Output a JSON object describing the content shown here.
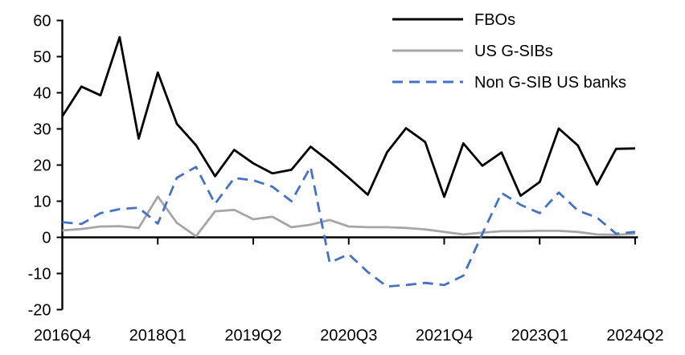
{
  "chart_data": {
    "type": "line",
    "title": "",
    "xlabel": "",
    "ylabel": "",
    "grid": false,
    "legend_position": "top-right",
    "ylim": [
      -20,
      60
    ],
    "y_ticks": [
      60,
      50,
      40,
      30,
      20,
      10,
      0,
      -10,
      -20
    ],
    "x_tick_labels": [
      "2016Q4",
      "2018Q1",
      "2019Q2",
      "2020Q3",
      "2021Q4",
      "2023Q1",
      "2024Q2"
    ],
    "x_tick_indices": [
      0,
      5,
      10,
      15,
      20,
      25,
      30
    ],
    "categories": [
      "2016Q4",
      "2017Q1",
      "2017Q2",
      "2017Q3",
      "2017Q4",
      "2018Q1",
      "2018Q2",
      "2018Q3",
      "2018Q4",
      "2019Q1",
      "2019Q2",
      "2019Q3",
      "2019Q4",
      "2020Q1",
      "2020Q2",
      "2020Q3",
      "2020Q4",
      "2021Q1",
      "2021Q2",
      "2021Q3",
      "2021Q4",
      "2022Q1",
      "2022Q2",
      "2022Q3",
      "2022Q4",
      "2023Q1",
      "2023Q2",
      "2023Q3",
      "2023Q4",
      "2024Q1",
      "2024Q2"
    ],
    "series": [
      {
        "name": "FBOs",
        "color": "#000000",
        "dash": "",
        "values": [
          33.5,
          41.7,
          39.3,
          55.4,
          27.3,
          45.6,
          31.4,
          25.5,
          16.9,
          24.2,
          20.5,
          17.7,
          18.7,
          25.1,
          21.0,
          16.5,
          11.8,
          23.5,
          30.2,
          26.4,
          11.2,
          26.0,
          19.8,
          23.5,
          11.5,
          15.3,
          30.1,
          25.4,
          14.6,
          24.5,
          24.6
        ]
      },
      {
        "name": "US G-SIBs",
        "color": "#a6a6a6",
        "dash": "",
        "values": [
          1.9,
          2.3,
          3.0,
          3.1,
          2.6,
          11.3,
          4.0,
          0.3,
          7.2,
          7.6,
          5.0,
          5.7,
          2.8,
          3.5,
          4.8,
          3.0,
          2.8,
          2.8,
          2.6,
          2.2,
          1.5,
          0.8,
          1.3,
          1.7,
          1.7,
          1.8,
          1.8,
          1.5,
          0.8,
          0.7,
          1.0
        ]
      },
      {
        "name": "Non G-SIB US banks",
        "color": "#4472c4",
        "dash": "13 8",
        "values": [
          4.2,
          3.7,
          6.7,
          7.8,
          8.2,
          3.8,
          16.5,
          19.5,
          9.3,
          16.4,
          15.8,
          14.0,
          10.0,
          19.5,
          -7.0,
          -4.7,
          -9.6,
          -13.6,
          -13.2,
          -12.6,
          -13.2,
          -10.6,
          1.0,
          12.3,
          9.0,
          6.7,
          12.4,
          7.4,
          5.5,
          1.0,
          1.5
        ]
      }
    ],
    "axis_color": "#000000"
  }
}
